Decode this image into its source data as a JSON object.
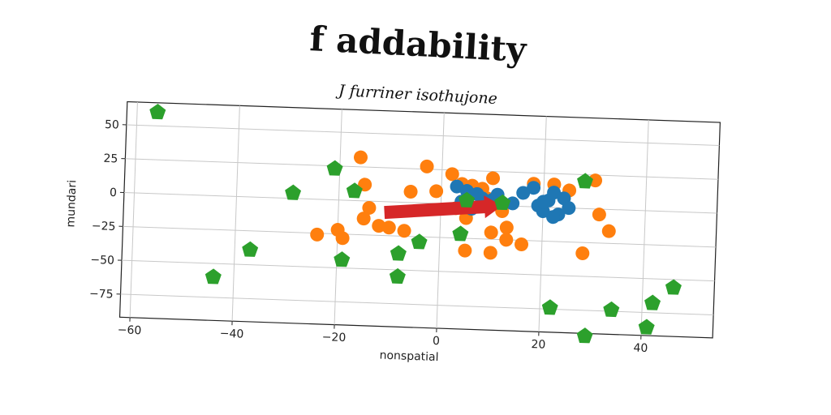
{
  "chart_data": {
    "type": "scatter",
    "title": "f addability",
    "subtitle": "J furriner isothujone",
    "xlabel": "nonspatial",
    "ylabel": "mundari",
    "xlim": [
      -62,
      54
    ],
    "ylim": [
      -92,
      67
    ],
    "xticks": [
      -60,
      -40,
      -20,
      0,
      20,
      40
    ],
    "yticks": [
      50,
      25,
      0,
      -25,
      -50,
      -75
    ],
    "xtick_labels": [
      "−60",
      "−40",
      "−20",
      "0",
      "20",
      "40"
    ],
    "ytick_labels": [
      "50",
      "25",
      "0",
      "−25",
      "−50",
      "−75"
    ],
    "grid": true,
    "legend": "none",
    "series": [
      {
        "marker": "circle",
        "color": "#1f77b4",
        "points": [
          [
            3,
            13
          ],
          [
            5,
            10
          ],
          [
            7,
            8
          ],
          [
            8,
            5
          ],
          [
            10,
            4
          ],
          [
            11,
            8
          ],
          [
            14,
            2
          ],
          [
            16,
            10
          ],
          [
            18,
            14
          ],
          [
            19,
            1
          ],
          [
            20,
            -3
          ],
          [
            21,
            5
          ],
          [
            22,
            11
          ],
          [
            23,
            -5
          ],
          [
            24,
            7
          ],
          [
            25,
            0
          ],
          [
            22,
            -7
          ],
          [
            20,
            4
          ],
          [
            6,
            -3
          ],
          [
            4,
            2
          ]
        ]
      },
      {
        "marker": "circle",
        "color": "#ff7f0e",
        "points": [
          [
            -16,
            32
          ],
          [
            -15,
            12
          ],
          [
            -14,
            -5
          ],
          [
            -15,
            -13
          ],
          [
            -20,
            -22
          ],
          [
            -19,
            -28
          ],
          [
            -24,
            -26
          ],
          [
            -12,
            -18
          ],
          [
            -10,
            -19
          ],
          [
            -7,
            -21
          ],
          [
            -6,
            8
          ],
          [
            -3,
            27
          ],
          [
            -1,
            9
          ],
          [
            2,
            22
          ],
          [
            4,
            15
          ],
          [
            6,
            14
          ],
          [
            8,
            12
          ],
          [
            10,
            20
          ],
          [
            3,
            -3
          ],
          [
            5,
            -10
          ],
          [
            9,
            5
          ],
          [
            10,
            -20
          ],
          [
            12,
            -4
          ],
          [
            13,
            -16
          ],
          [
            13,
            -25
          ],
          [
            10,
            -35
          ],
          [
            5,
            -34
          ],
          [
            16,
            -28
          ],
          [
            18,
            17
          ],
          [
            22,
            17
          ],
          [
            25,
            13
          ],
          [
            30,
            21
          ],
          [
            31,
            -4
          ],
          [
            33,
            -16
          ],
          [
            28,
            -33
          ]
        ]
      },
      {
        "marker": "pentagon",
        "color": "#2ca02c",
        "points": [
          [
            -56,
            60
          ],
          [
            -44,
            -60
          ],
          [
            -37,
            -39
          ],
          [
            -29,
            4
          ],
          [
            -21,
            23
          ],
          [
            -17,
            7
          ],
          [
            -19,
            -44
          ],
          [
            -8,
            -55
          ],
          [
            -8,
            -38
          ],
          [
            -4,
            -29
          ],
          [
            4,
            -22
          ],
          [
            5,
            3
          ],
          [
            12,
            2
          ],
          [
            28,
            20
          ],
          [
            22,
            -74
          ],
          [
            29,
            -94
          ],
          [
            34,
            -74
          ],
          [
            41,
            -86
          ],
          [
            42,
            -68
          ],
          [
            46,
            -56
          ]
        ]
      }
    ],
    "arrow": {
      "color": "#d62728",
      "from": [
        -11,
        -8
      ],
      "to": [
        12,
        0
      ]
    }
  }
}
